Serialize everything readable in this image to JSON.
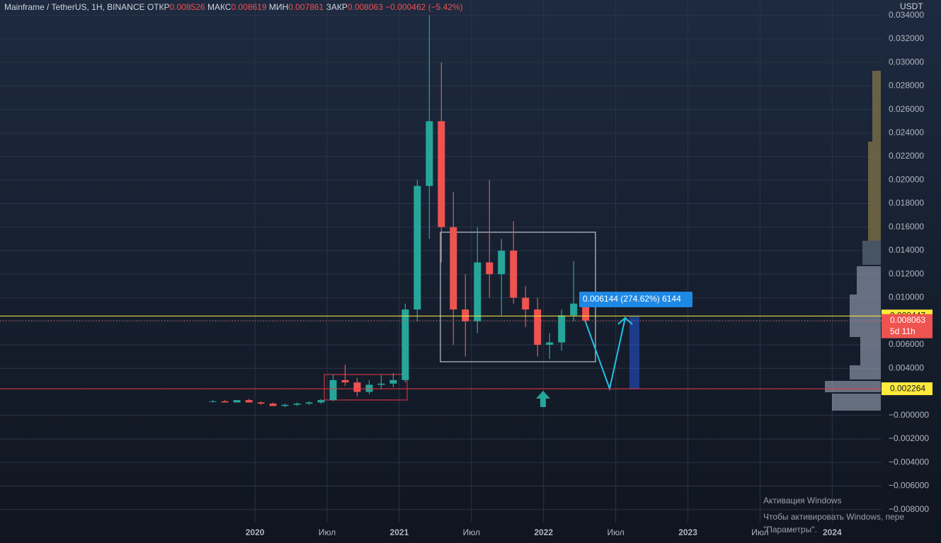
{
  "chart_data": {
    "type": "candlestick",
    "header": {
      "symbol": "Mainframe / TetherUS, 1H, BINANCE",
      "open_label": "ОТКР",
      "open": "0.008526",
      "high_label": "МАКС",
      "high": "0.008619",
      "low_label": "МИН",
      "low": "0.007861",
      "close_label": "ЗАКР",
      "close": "0.008063",
      "change": "−0.000462 (−5.42%)"
    },
    "y_unit": "USDT",
    "up_color": "#26a69a",
    "down_color": "#ef5350",
    "x": [
      -3.5,
      -2.5,
      -1.5,
      -0.5,
      0.5,
      1.5,
      2.5,
      3.5,
      4.5,
      5.5,
      6.5,
      7.5,
      8.5,
      9.5,
      10.5,
      11.5,
      12.5,
      13.5,
      14.5,
      15.5,
      16.5,
      17.5,
      18.5,
      19.5,
      20.5,
      21.5,
      22.5,
      23.5,
      24.5,
      25.5,
      26.5,
      27.5
    ],
    "open": [
      0.0012,
      0.0012,
      0.0011,
      0.0013,
      0.0011,
      0.001,
      0.0008,
      0.0009,
      0.001,
      0.0011,
      0.0013,
      0.003,
      0.0028,
      0.002,
      0.0026,
      0.0027,
      0.003,
      0.009,
      0.0195,
      0.025,
      0.016,
      0.009,
      0.008,
      0.013,
      0.012,
      0.014,
      0.01,
      0.009,
      0.006,
      0.0062,
      0.0085,
      0.0095
    ],
    "high": [
      0.0013,
      0.0013,
      0.0013,
      0.0014,
      0.0012,
      0.0011,
      0.001,
      0.0011,
      0.0012,
      0.0014,
      0.0035,
      0.0043,
      0.0032,
      0.003,
      0.0034,
      0.0036,
      0.0095,
      0.02,
      0.034,
      0.03,
      0.019,
      0.012,
      0.016,
      0.02,
      0.015,
      0.0165,
      0.011,
      0.01,
      0.007,
      0.009,
      0.0131,
      0.01
    ],
    "low": [
      0.0011,
      0.0011,
      0.0011,
      0.0011,
      0.0009,
      0.0008,
      0.0007,
      0.0008,
      0.0009,
      0.001,
      0.0012,
      0.0025,
      0.0016,
      0.0018,
      0.0022,
      0.0024,
      0.0028,
      0.008,
      0.015,
      0.013,
      0.006,
      0.005,
      0.007,
      0.01,
      0.0085,
      0.0095,
      0.0075,
      0.005,
      0.0048,
      0.0055,
      0.008,
      0.0078
    ],
    "close": [
      0.0012,
      0.0011,
      0.0013,
      0.0011,
      0.001,
      0.0008,
      0.0009,
      0.001,
      0.0011,
      0.0013,
      0.003,
      0.0028,
      0.002,
      0.0026,
      0.0027,
      0.003,
      0.009,
      0.0195,
      0.025,
      0.016,
      0.009,
      0.008,
      0.013,
      0.012,
      0.014,
      0.01,
      0.009,
      0.006,
      0.0062,
      0.0085,
      0.0095,
      0.008063
    ],
    "xlim": [
      -21.2,
      52.1
    ],
    "xticks": [
      {
        "value": 0,
        "label": "2020"
      },
      {
        "value": 6,
        "label": "Июл"
      },
      {
        "value": 12,
        "label": "2021"
      },
      {
        "value": 18,
        "label": "Июл"
      },
      {
        "value": 24,
        "label": "2022"
      },
      {
        "value": 30,
        "label": "Июл"
      },
      {
        "value": 36,
        "label": "2023"
      },
      {
        "value": 42,
        "label": "Июл"
      },
      {
        "value": 48,
        "label": "2024"
      }
    ],
    "ylim": [
      -0.0091,
      0.0353
    ],
    "yticks": [
      {
        "value": 0.034,
        "label": "0.034000"
      },
      {
        "value": 0.032,
        "label": "0.032000"
      },
      {
        "value": 0.03,
        "label": "0.030000"
      },
      {
        "value": 0.028,
        "label": "0.028000"
      },
      {
        "value": 0.026,
        "label": "0.026000"
      },
      {
        "value": 0.024,
        "label": "0.024000"
      },
      {
        "value": 0.022,
        "label": "0.022000"
      },
      {
        "value": 0.02,
        "label": "0.020000"
      },
      {
        "value": 0.018,
        "label": "0.018000"
      },
      {
        "value": 0.016,
        "label": "0.016000"
      },
      {
        "value": 0.014,
        "label": "0.014000"
      },
      {
        "value": 0.012,
        "label": "0.012000"
      },
      {
        "value": 0.01,
        "label": "0.010000"
      },
      {
        "value": 0.008,
        "label": "0.008000"
      },
      {
        "value": 0.006,
        "label": "0.006000"
      },
      {
        "value": 0.004,
        "label": "0.004000"
      },
      {
        "value": 0,
        "label": "−0.000000"
      },
      {
        "value": -0.002,
        "label": "−0.002000"
      },
      {
        "value": -0.004,
        "label": "−0.004000"
      },
      {
        "value": -0.006,
        "label": "−0.006000"
      },
      {
        "value": -0.008,
        "label": "−0.008000"
      }
    ],
    "grid": true,
    "price_labels": [
      {
        "value": 0.008447,
        "color": "#ffeb3b",
        "line_color": "#ffeb3b",
        "dash": false
      },
      {
        "value": 0.008063,
        "color": "#ef5350",
        "line_color": "#ef5350",
        "dash": true,
        "extra": "5d 11h"
      },
      {
        "value": 0.002264,
        "color": "#ffeb3b",
        "line_color": "#f23645",
        "dash": false
      }
    ],
    "measure": "0.006144 (274.62%) 6144",
    "watermark": {
      "title": "Активация Windows",
      "line1": "Чтобы активировать Windows, пере",
      "line2": "\"Параметры\"."
    }
  }
}
